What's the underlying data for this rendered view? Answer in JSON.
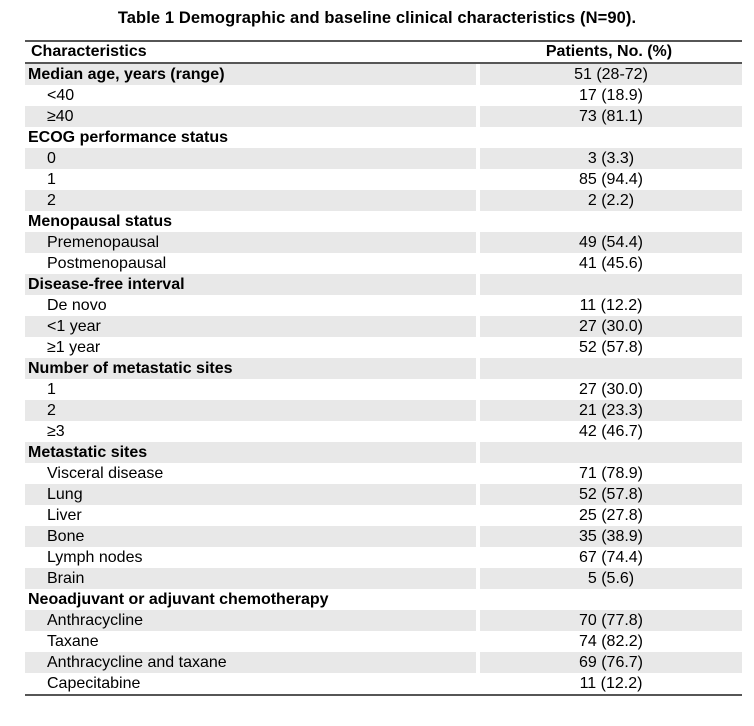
{
  "title": "Table 1 Demographic and baseline clinical characteristics (N=90).",
  "colors": {
    "row_shade": "#e8e8e8",
    "rule": "#565656"
  },
  "table": {
    "header": {
      "characteristics": "Characteristics",
      "patients": "Patients, No. (%)"
    },
    "rows": [
      {
        "label": "Median age, years (range)",
        "value": "51 (28-72)",
        "type": "category"
      },
      {
        "label": "<40",
        "value": "17 (18.9)",
        "type": "sub"
      },
      {
        "label": "≥40",
        "value": "73 (81.1)",
        "type": "sub"
      },
      {
        "label": "ECOG performance status",
        "value": "",
        "type": "category"
      },
      {
        "label": "0",
        "value": "3 (3.3)",
        "type": "sub"
      },
      {
        "label": "1",
        "value": "85 (94.4)",
        "type": "sub"
      },
      {
        "label": "2",
        "value": "2 (2.2)",
        "type": "sub"
      },
      {
        "label": "Menopausal status",
        "value": "",
        "type": "category"
      },
      {
        "label": "Premenopausal",
        "value": "49 (54.4)",
        "type": "sub"
      },
      {
        "label": "Postmenopausal",
        "value": "41 (45.6)",
        "type": "sub"
      },
      {
        "label": "Disease-free interval",
        "value": "",
        "type": "category"
      },
      {
        "label": "De novo",
        "value": "11 (12.2)",
        "type": "sub"
      },
      {
        "label": "<1 year",
        "value": "27 (30.0)",
        "type": "sub"
      },
      {
        "label": "≥1 year",
        "value": "52 (57.8)",
        "type": "sub"
      },
      {
        "label": "Number of metastatic sites",
        "value": "",
        "type": "category"
      },
      {
        "label": "1",
        "value": "27 (30.0)",
        "type": "sub"
      },
      {
        "label": "2",
        "value": "21 (23.3)",
        "type": "sub"
      },
      {
        "label": "≥3",
        "value": "42 (46.7)",
        "type": "sub"
      },
      {
        "label": "Metastatic sites",
        "value": "",
        "type": "category"
      },
      {
        "label": "Visceral disease",
        "value": "71 (78.9)",
        "type": "sub"
      },
      {
        "label": "Lung",
        "value": "52 (57.8)",
        "type": "sub"
      },
      {
        "label": "Liver",
        "value": "25 (27.8)",
        "type": "sub"
      },
      {
        "label": "Bone",
        "value": "35 (38.9)",
        "type": "sub"
      },
      {
        "label": "Lymph nodes",
        "value": "67 (74.4)",
        "type": "sub"
      },
      {
        "label": "Brain",
        "value": "5 (5.6)",
        "type": "sub"
      },
      {
        "label": "Neoadjuvant or adjuvant chemotherapy",
        "value": "",
        "type": "category"
      },
      {
        "label": "Anthracycline",
        "value": "70 (77.8)",
        "type": "sub"
      },
      {
        "label": "Taxane",
        "value": "74 (82.2)",
        "type": "sub"
      },
      {
        "label": "Anthracycline and taxane",
        "value": "69 (76.7)",
        "type": "sub"
      },
      {
        "label": "Capecitabine",
        "value": "11 (12.2)",
        "type": "sub"
      }
    ]
  }
}
